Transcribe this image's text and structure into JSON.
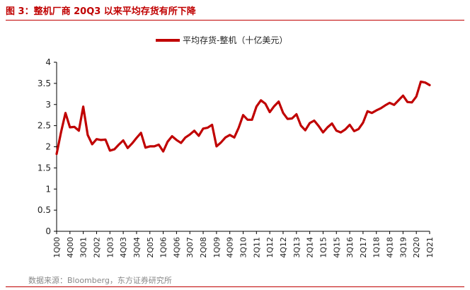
{
  "figure": {
    "title": "图 3：整机厂商 20Q3 以来平均存货有所下降",
    "source": "数据来源：Bloomberg，东方证券研究所"
  },
  "chart_data": {
    "type": "line",
    "title": "",
    "xlabel": "",
    "ylabel": "",
    "ylim": [
      0,
      4
    ],
    "yticks": [
      0,
      0.5,
      1,
      1.5,
      2,
      2.5,
      3,
      3.5,
      4
    ],
    "ytick_labels": [
      "0",
      "0.5",
      "1",
      "1.5",
      "2",
      "2.5",
      "3",
      "3.5",
      "4"
    ],
    "xtick_labels": [
      "1Q00",
      "4Q00",
      "3Q01",
      "2Q02",
      "1Q03",
      "4Q03",
      "3Q04",
      "2Q05",
      "1Q06",
      "4Q06",
      "3Q07",
      "2Q08",
      "1Q09",
      "4Q09",
      "3Q10",
      "2Q11",
      "1Q12",
      "4Q12",
      "3Q13",
      "2Q14",
      "1Q15",
      "4Q15",
      "3Q16",
      "2Q17",
      "1Q18",
      "4Q18",
      "3Q19",
      "2Q20",
      "1Q21"
    ],
    "grid": false,
    "legend_position": "top-center",
    "color": "#c00000",
    "series": [
      {
        "name": "平均存货-整机（十亿美元）",
        "x_start": "1Q00",
        "values": [
          1.83,
          2.35,
          2.8,
          2.46,
          2.47,
          2.38,
          2.95,
          2.28,
          2.06,
          2.18,
          2.16,
          2.17,
          1.91,
          1.94,
          2.05,
          2.15,
          1.97,
          2.08,
          2.21,
          2.33,
          1.98,
          2.01,
          2.01,
          2.05,
          1.89,
          2.12,
          2.25,
          2.16,
          2.09,
          2.22,
          2.29,
          2.38,
          2.26,
          2.43,
          2.45,
          2.52,
          2.01,
          2.1,
          2.22,
          2.28,
          2.22,
          2.45,
          2.75,
          2.64,
          2.64,
          2.95,
          3.1,
          3.02,
          2.82,
          2.96,
          3.07,
          2.8,
          2.66,
          2.67,
          2.77,
          2.5,
          2.39,
          2.56,
          2.62,
          2.49,
          2.34,
          2.46,
          2.55,
          2.38,
          2.34,
          2.41,
          2.52,
          2.37,
          2.42,
          2.57,
          2.84,
          2.8,
          2.86,
          2.91,
          2.98,
          3.04,
          2.99,
          3.1,
          3.21,
          3.06,
          3.05,
          3.19,
          3.54,
          3.52,
          3.46
        ]
      }
    ]
  }
}
